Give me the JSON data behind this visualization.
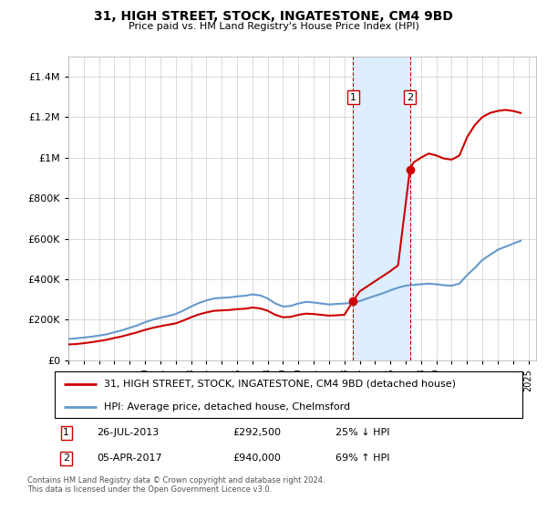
{
  "title": "31, HIGH STREET, STOCK, INGATESTONE, CM4 9BD",
  "subtitle": "Price paid vs. HM Land Registry's House Price Index (HPI)",
  "ylabel_values": [
    0,
    200000,
    400000,
    600000,
    800000,
    1000000,
    1200000,
    1400000
  ],
  "ylim": [
    0,
    1500000
  ],
  "xlim_start": 1995.0,
  "xlim_end": 2025.5,
  "legend_line1": "31, HIGH STREET, STOCK, INGATESTONE, CM4 9BD (detached house)",
  "legend_line2": "HPI: Average price, detached house, Chelmsford",
  "transaction1_label": "1",
  "transaction1_date": "26-JUL-2013",
  "transaction1_price": "£292,500",
  "transaction1_change": "25% ↓ HPI",
  "transaction2_label": "2",
  "transaction2_date": "05-APR-2017",
  "transaction2_price": "£940,000",
  "transaction2_change": "69% ↑ HPI",
  "footnote": "Contains HM Land Registry data © Crown copyright and database right 2024.\nThis data is licensed under the Open Government Licence v3.0.",
  "red_color": "#cc0000",
  "blue_color": "#6699cc",
  "shading_color": "#ddeeff",
  "transaction1_x": 2013.57,
  "transaction2_x": 2017.27,
  "transaction1_y": 292500,
  "transaction2_y": 940000,
  "hpi_x": [
    1995,
    1995.5,
    1996,
    1996.5,
    1997,
    1997.5,
    1998,
    1998.5,
    1999,
    1999.5,
    2000,
    2000.5,
    2001,
    2001.5,
    2002,
    2002.5,
    2003,
    2003.5,
    2004,
    2004.5,
    2005,
    2005.5,
    2006,
    2006.5,
    2007,
    2007.5,
    2008,
    2008.5,
    2009,
    2009.5,
    2010,
    2010.5,
    2011,
    2011.5,
    2012,
    2012.5,
    2013,
    2013.5,
    2014,
    2014.5,
    2015,
    2015.5,
    2016,
    2016.5,
    2017,
    2017.5,
    2018,
    2018.5,
    2019,
    2019.5,
    2020,
    2020.5,
    2021,
    2021.5,
    2022,
    2022.5,
    2023,
    2023.5,
    2024,
    2024.5
  ],
  "hpi_y": [
    105000,
    108000,
    112000,
    116000,
    122000,
    128000,
    138000,
    148000,
    160000,
    172000,
    188000,
    200000,
    210000,
    218000,
    228000,
    245000,
    265000,
    282000,
    295000,
    305000,
    308000,
    310000,
    315000,
    318000,
    325000,
    320000,
    305000,
    280000,
    265000,
    268000,
    280000,
    288000,
    285000,
    280000,
    275000,
    278000,
    280000,
    282000,
    292000,
    305000,
    318000,
    330000,
    345000,
    358000,
    368000,
    372000,
    375000,
    378000,
    375000,
    370000,
    368000,
    378000,
    420000,
    455000,
    495000,
    520000,
    545000,
    560000,
    575000,
    590000
  ],
  "red_x": [
    1995,
    1995.5,
    1996,
    1996.5,
    1997,
    1997.5,
    1998,
    1998.5,
    1999,
    1999.5,
    2000,
    2000.5,
    2001,
    2001.5,
    2002,
    2002.5,
    2003,
    2003.5,
    2004,
    2004.5,
    2005,
    2005.5,
    2006,
    2006.5,
    2007,
    2007.5,
    2008,
    2008.5,
    2009,
    2009.5,
    2010,
    2010.5,
    2011,
    2011.5,
    2012,
    2012.5,
    2013,
    2013.57,
    2014,
    2014.5,
    2015,
    2015.5,
    2016,
    2016.5,
    2017.27,
    2017.5,
    2018,
    2018.5,
    2019,
    2019.5,
    2020,
    2020.5,
    2021,
    2021.5,
    2022,
    2022.5,
    2023,
    2023.5,
    2024,
    2024.5
  ],
  "red_y": [
    78000,
    80000,
    84000,
    89000,
    95000,
    101000,
    110000,
    118000,
    128000,
    138000,
    150000,
    160000,
    168000,
    175000,
    182000,
    196000,
    212000,
    226000,
    236000,
    244000,
    246000,
    248000,
    252000,
    254000,
    260000,
    256000,
    244000,
    224000,
    212000,
    214000,
    224000,
    230000,
    228000,
    224000,
    220000,
    222000,
    224000,
    292500,
    340000,
    365000,
    390000,
    415000,
    440000,
    468000,
    940000,
    975000,
    1000000,
    1020000,
    1010000,
    995000,
    990000,
    1010000,
    1100000,
    1160000,
    1200000,
    1220000,
    1230000,
    1235000,
    1230000,
    1220000
  ]
}
